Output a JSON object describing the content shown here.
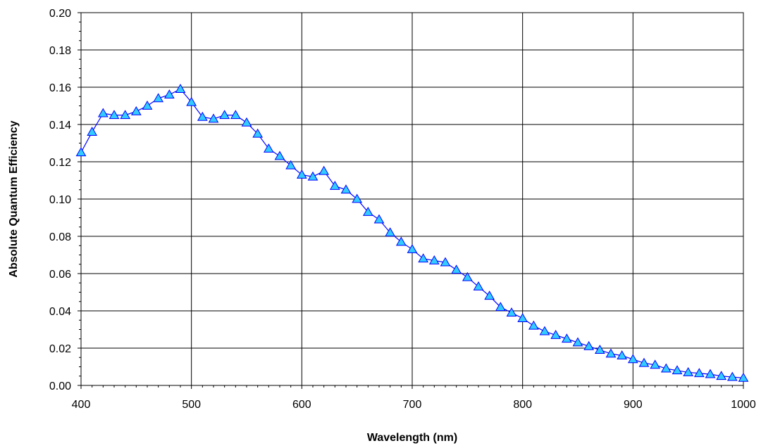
{
  "chart_data": {
    "type": "line",
    "title": "",
    "xlabel": "Wavelength (nm)",
    "ylabel": "Absolute Quantum Efficiency",
    "xlim": [
      400,
      1000
    ],
    "ylim": [
      0,
      0.2
    ],
    "x_ticks": [
      "400",
      "500",
      "600",
      "700",
      "800",
      "900",
      "1000"
    ],
    "y_ticks": [
      "0.00",
      "0.02",
      "0.04",
      "0.06",
      "0.08",
      "0.10",
      "0.12",
      "0.14",
      "0.16",
      "0.18",
      "0.20"
    ],
    "grid": true,
    "legend": "none",
    "marker": "triangle",
    "line_color": "#0000ff",
    "marker_fill": "#33ccff",
    "series": [
      {
        "x": [
          400,
          410,
          420,
          430,
          440,
          450,
          460,
          470,
          480,
          490,
          500,
          510,
          520,
          530,
          540,
          550,
          560,
          570,
          580,
          590,
          600,
          610,
          620,
          630,
          640,
          650,
          660,
          670,
          680,
          690,
          700,
          710,
          720,
          730,
          740,
          750,
          760,
          770,
          780,
          790,
          800,
          810,
          820,
          830,
          840,
          850,
          860,
          870,
          880,
          890,
          900,
          910,
          920,
          930,
          940,
          950,
          960,
          970,
          980,
          990,
          1000
        ],
        "values": [
          0.125,
          0.136,
          0.146,
          0.145,
          0.145,
          0.147,
          0.15,
          0.154,
          0.156,
          0.159,
          0.152,
          0.144,
          0.143,
          0.145,
          0.145,
          0.141,
          0.135,
          0.127,
          0.123,
          0.118,
          0.113,
          0.112,
          0.115,
          0.107,
          0.105,
          0.1,
          0.093,
          0.089,
          0.082,
          0.077,
          0.073,
          0.068,
          0.067,
          0.066,
          0.062,
          0.058,
          0.053,
          0.048,
          0.042,
          0.039,
          0.036,
          0.032,
          0.029,
          0.027,
          0.025,
          0.023,
          0.021,
          0.019,
          0.017,
          0.016,
          0.014,
          0.012,
          0.011,
          0.009,
          0.008,
          0.007,
          0.0065,
          0.006,
          0.005,
          0.0045,
          0.004
        ]
      }
    ]
  }
}
